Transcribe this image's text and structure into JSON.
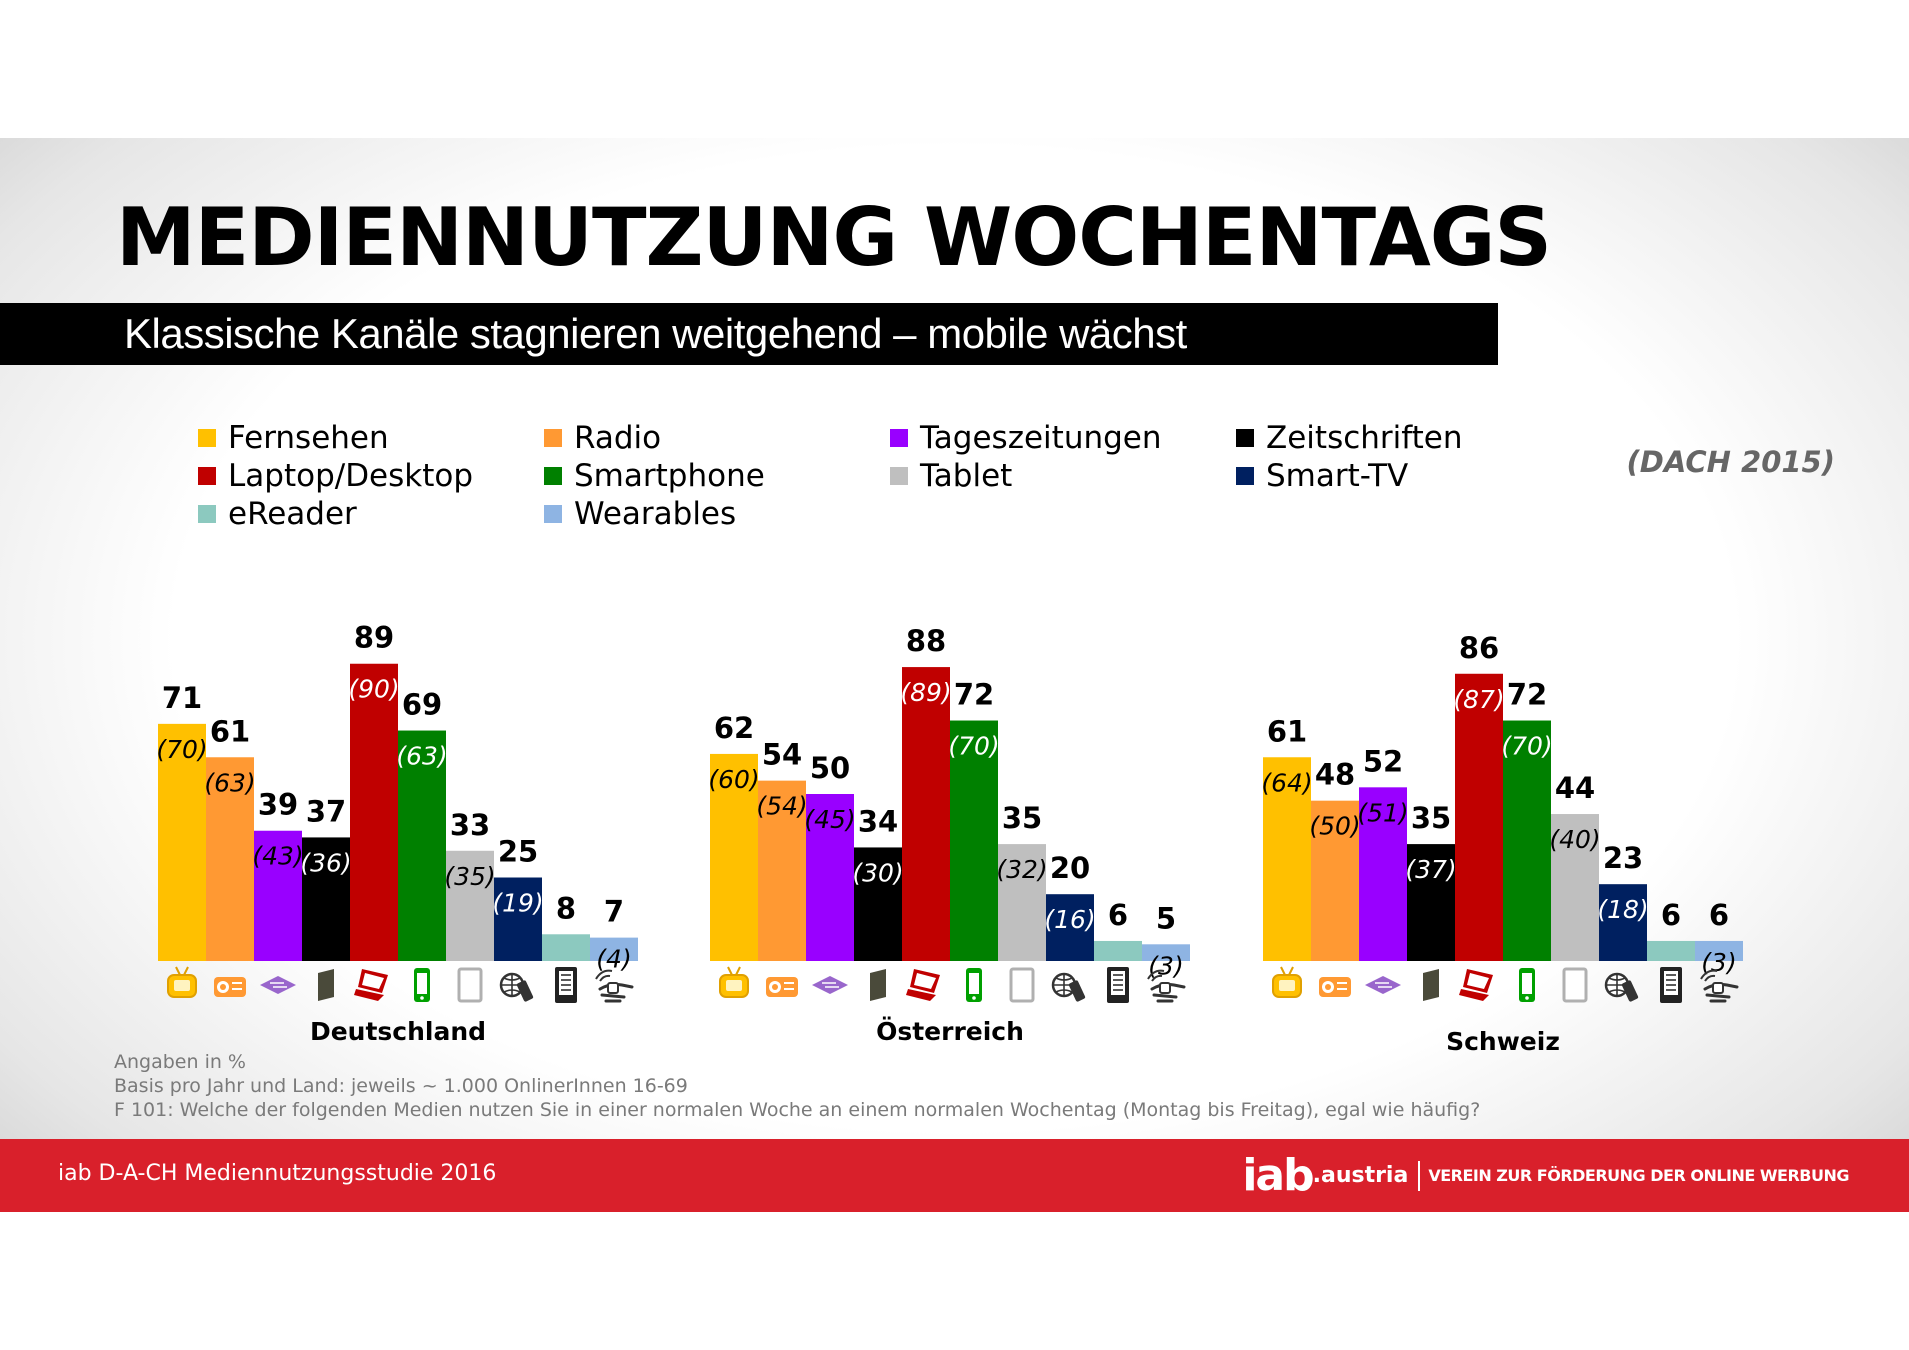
{
  "header": {
    "title": "MEDIENNUTZUNG WOCHENTAGS",
    "subtitle": "Klassische Kanäle stagnieren weitgehend – mobile wächst",
    "badge": "(DACH 2015)"
  },
  "chart_data": {
    "type": "bar",
    "title": "MEDIENNUTZUNG WOCHENTAGS",
    "ylabel": "Angaben in %",
    "ylim": [
      0,
      100
    ],
    "grid": false,
    "legend_position": "top",
    "series": [
      {
        "name": "Fernsehen",
        "color": "#ffc000",
        "icon": "tv-icon"
      },
      {
        "name": "Radio",
        "color": "#ff9933",
        "icon": "radio-icon"
      },
      {
        "name": "Tageszeitungen",
        "color": "#9900ff",
        "icon": "newspaper-icon"
      },
      {
        "name": "Zeitschriften",
        "color": "#000000",
        "icon": "magazine-icon"
      },
      {
        "name": "Laptop/Desktop",
        "color": "#c00000",
        "icon": "laptop-icon"
      },
      {
        "name": "Smartphone",
        "color": "#008000",
        "icon": "smartphone-icon"
      },
      {
        "name": "Tablet",
        "color": "#bfbfbf",
        "icon": "tablet-icon"
      },
      {
        "name": "Smart-TV",
        "color": "#002060",
        "icon": "smart-tv-icon"
      },
      {
        "name": "eReader",
        "color": "#8cc9bf",
        "icon": "ereader-icon"
      },
      {
        "name": "Wearables",
        "color": "#8eb4e3",
        "icon": "wearable-icon"
      }
    ],
    "groups": [
      {
        "country": "Deutschland",
        "values": [
          71,
          61,
          39,
          37,
          89,
          69,
          33,
          25,
          8,
          7
        ],
        "previous": [
          "(70)",
          "(63)",
          "(43)",
          "(36)",
          "(90)",
          "(63)",
          "(35)",
          "(19)",
          null,
          "(4)"
        ]
      },
      {
        "country": "Österreich",
        "values": [
          62,
          54,
          50,
          34,
          88,
          72,
          35,
          20,
          6,
          5
        ],
        "previous": [
          "(60)",
          "(54)",
          "(45)",
          "(30)",
          "(89)",
          "(70)",
          "(32)",
          "(16)",
          null,
          "(3)"
        ]
      },
      {
        "country": "Schweiz",
        "values": [
          61,
          48,
          52,
          35,
          86,
          72,
          44,
          23,
          6,
          6
        ],
        "previous": [
          "(64)",
          "(50)",
          "(51)",
          "(37)",
          "(87)",
          "(70)",
          "(40)",
          "(18)",
          null,
          "(3)"
        ]
      }
    ]
  },
  "footnotes": {
    "line1": "Angaben in %",
    "line2": "Basis pro Jahr und Land:  jeweils ~ 1.000 OnlinerInnen 16-69",
    "line3": "F 101:  Welche der folgenden Medien nutzen Sie in einer normalen Woche an einem normalen Wochentag (Montag bis Freitag), egal wie häufig?"
  },
  "footer": {
    "source": "iab D-A-CH Mediennutzungsstudie 2016",
    "logo_main": "iab",
    "logo_sub": ".austria",
    "claim": "VEREIN ZUR FÖRDERUNG DER ONLINE WERBUNG"
  }
}
